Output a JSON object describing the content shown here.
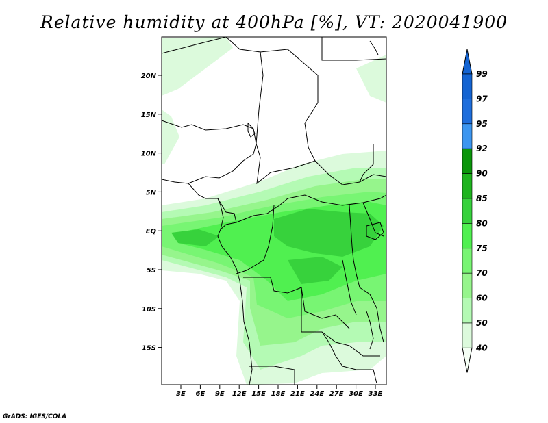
{
  "title": "Relative humidity at 400hPa [%], VT: 2020041900",
  "credit": "GrADS: IGES/COLA",
  "map": {
    "lat_labels": [
      "20N",
      "15N",
      "10N",
      "5N",
      "EQ",
      "5S",
      "10S",
      "15S"
    ],
    "lon_labels": [
      "3E",
      "6E",
      "9E",
      "12E",
      "15E",
      "18E",
      "21E",
      "24E",
      "27E",
      "30E",
      "33E"
    ]
  },
  "colorbar": {
    "labels": [
      "99",
      "97",
      "95",
      "92",
      "90",
      "85",
      "80",
      "75",
      "70",
      "60",
      "50",
      "40"
    ],
    "colors": [
      "#1464d2",
      "#1e6edc",
      "#3c96f0",
      "#0a960a",
      "#1eb41e",
      "#37d23c",
      "#50f050",
      "#78f573",
      "#96f58c",
      "#b4fab4",
      "#dcfadc",
      "#f5fff5"
    ]
  }
}
